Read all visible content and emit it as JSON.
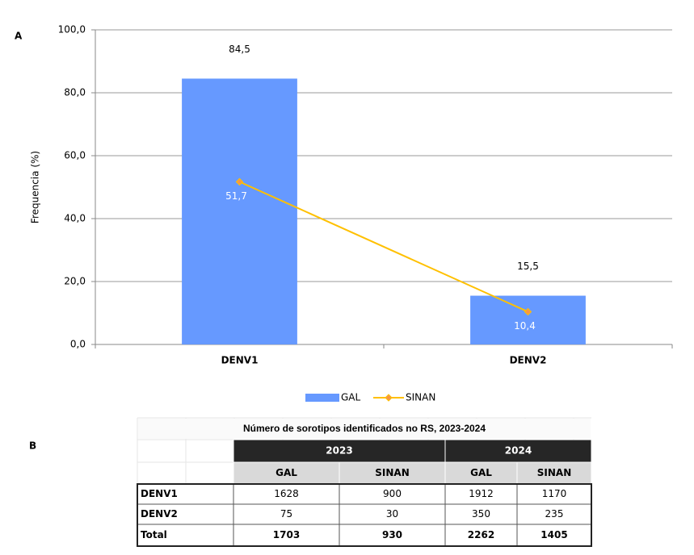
{
  "panel_labels": [
    "A",
    "B"
  ],
  "chart_data": {
    "type": "bar",
    "y_label": "Frequencia (%)",
    "categories": [
      "DENV1",
      "DENV2"
    ],
    "series": [
      {
        "name": "GAL",
        "type": "bar",
        "color": "#6699ff",
        "values": [
          84.5,
          15.5
        ],
        "value_labels": [
          "84,5",
          "15,5"
        ]
      },
      {
        "name": "SINAN",
        "type": "line",
        "color": "#ffc000",
        "values": [
          51.7,
          10.4
        ],
        "value_labels": [
          "51,7",
          "10,4"
        ]
      }
    ],
    "ylim": [
      0,
      100
    ],
    "yticks": [
      {
        "value": 0,
        "label": "0,0"
      },
      {
        "value": 20,
        "label": "20,0"
      },
      {
        "value": 40,
        "label": "40,0"
      },
      {
        "value": 60,
        "label": "60,0"
      },
      {
        "value": 80,
        "label": "80,0"
      },
      {
        "value": 100,
        "label": "100,0"
      }
    ],
    "grid": true,
    "legend": "bottom"
  },
  "table": {
    "title": "Número de sorotipos identificados no RS, 2023-2024",
    "years": [
      "2023",
      "2024"
    ],
    "columns": [
      "GAL",
      "SINAN",
      "GAL",
      "SINAN"
    ],
    "rows": [
      [
        "DENV1",
        1628,
        900,
        1912,
        1170
      ],
      [
        "DENV2",
        75,
        30,
        350,
        235
      ],
      [
        "Total",
        1703,
        930,
        2262,
        1405
      ]
    ]
  }
}
